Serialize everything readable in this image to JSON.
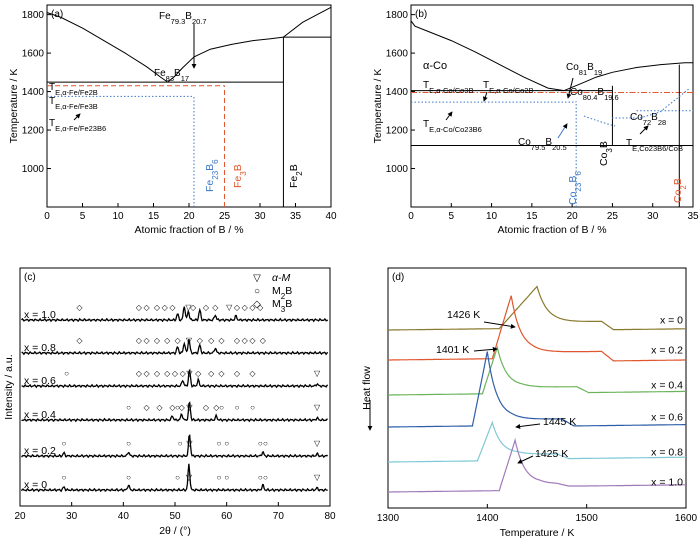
{
  "chart_data": [
    {
      "type": "line",
      "panel": "(a)",
      "xlabel": "Atomic fraction of B / %",
      "ylabel": "Temperature / K",
      "xlim": [
        0,
        40
      ],
      "ylim": [
        800,
        1850
      ],
      "xticks": [
        0,
        5,
        10,
        15,
        20,
        25,
        30,
        35,
        40
      ],
      "yticks": [
        1000,
        1200,
        1400,
        1600,
        1800
      ],
      "labels": {
        "e1": "Fe",
        "e1sub": "79.3",
        "e1b": "B",
        "e1bsub": "20.7",
        "e2": "Fe",
        "e2sub": "83",
        "e2b": "B",
        "e2bsub": "17",
        "t1": "T",
        "t1sub": "E,α-Fe/Fe2B",
        "t2": "T",
        "t2sub": "E,α-Fe/Fe3B",
        "t3": "T",
        "t3sub": "E,α-Fe/Fe23B6",
        "v1": "Fe23B6",
        "v2": "Fe3B",
        "v3": "Fe2B"
      },
      "liquidus_left": {
        "x": [
          0,
          2,
          5,
          8,
          11,
          14,
          16,
          17
        ],
        "y": [
          1811,
          1785,
          1730,
          1665,
          1600,
          1530,
          1475,
          1449
        ]
      },
      "liquidus_right": {
        "x": [
          17,
          18,
          19,
          20.7,
          23,
          26,
          29,
          31.5,
          33.3
        ],
        "y": [
          1449,
          1480,
          1520,
          1580,
          1620,
          1645,
          1665,
          1675,
          1683
        ]
      },
      "liquidus_fe2b": {
        "x": [
          33.3,
          36,
          40
        ],
        "y": [
          1683,
          1760,
          1838
        ]
      },
      "hlines": [
        {
          "y": 1449,
          "x": [
            0,
            33.3
          ],
          "style": "solid",
          "color": "#000"
        },
        {
          "y": 1683,
          "x": [
            33.3,
            40
          ],
          "style": "solid",
          "color": "#000"
        },
        {
          "y": 1430,
          "x": [
            0,
            25
          ],
          "style": "dash",
          "color": "#e0562e"
        },
        {
          "y": 1375,
          "x": [
            0,
            20.7
          ],
          "style": "dot",
          "color": "#3c78c8"
        }
      ],
      "vlines": [
        {
          "x": 20.7,
          "y": [
            800,
            1375
          ],
          "style": "dot",
          "color": "#3c78c8"
        },
        {
          "x": 25,
          "y": [
            800,
            1430
          ],
          "style": "dash",
          "color": "#e0562e"
        },
        {
          "x": 33.3,
          "y": [
            800,
            1683
          ],
          "style": "solid",
          "color": "#000"
        }
      ]
    },
    {
      "type": "line",
      "panel": "(b)",
      "xlabel": "Atomic fraction of B / %",
      "ylabel": "Temperature / K",
      "xlim": [
        0,
        35
      ],
      "ylim": [
        800,
        1850
      ],
      "xticks": [
        0,
        5,
        10,
        15,
        20,
        25,
        30,
        35
      ],
      "yticks": [
        1000,
        1200,
        1400,
        1600,
        1800
      ],
      "labels": {
        "phase": "α-Co",
        "e1": "Co",
        "e1sub": "81",
        "e1b": "B",
        "e1bsub": "19",
        "e2": "Co",
        "e2sub": "80.4",
        "e2b": "B",
        "e2bsub": "19.6",
        "e3": "Co",
        "e3sub": "79.5",
        "e3b": "B",
        "e3bsub": "20.5",
        "e4": "Co",
        "e4sub": "72",
        "e4b": "B",
        "e4bsub": "28",
        "t1": "T",
        "t1sub": "E,α-Co/Co3B",
        "t2": "T",
        "t2sub": "E,α-Co/Co2B",
        "t3": "T",
        "t3sub": "E,α-Co/Co23B6",
        "t4": "T",
        "t4sub": "E,Co23B6/CoB",
        "v1": "Co23B6",
        "v2": "Co3B",
        "v3": "Co2B"
      },
      "liquidus_left": {
        "x": [
          0,
          0.5,
          2,
          5,
          8,
          11,
          14,
          17,
          19
        ],
        "y": [
          1768,
          1740,
          1715,
          1665,
          1605,
          1540,
          1475,
          1418,
          1405
        ]
      },
      "liquidus_right": {
        "x": [
          19,
          21,
          23,
          25,
          28,
          31,
          34,
          35
        ],
        "y": [
          1405,
          1440,
          1475,
          1500,
          1525,
          1540,
          1550,
          1550
        ]
      },
      "hlines": [
        {
          "y": 1405,
          "x": [
            0,
            25
          ],
          "style": "solid",
          "color": "#000"
        },
        {
          "y": 1395,
          "x": [
            0,
            35
          ],
          "style": "dashdot",
          "color": "#e0562e"
        },
        {
          "y": 1345,
          "x": [
            0,
            20.5
          ],
          "style": "dot",
          "color": "#3c78c8"
        },
        {
          "y": 1300,
          "x": [
            28,
            35
          ],
          "style": "dot",
          "color": "#3c78c8"
        },
        {
          "y": 1120,
          "x": [
            0,
            35
          ],
          "style": "solid",
          "color": "#000"
        }
      ],
      "vlines": [
        {
          "x": 20.5,
          "y": [
            800,
            1350
          ],
          "style": "dot",
          "color": "#3c78c8"
        },
        {
          "x": 25,
          "y": [
            1120,
            1430
          ],
          "style": "solid",
          "color": "#000"
        },
        {
          "x": 33.3,
          "y": [
            800,
            1540
          ],
          "style": "solid",
          "color": "#000"
        }
      ]
    },
    {
      "type": "line",
      "panel": "(c)",
      "xlabel": "2θ / (°)",
      "ylabel": "Intensity / a.u.",
      "xlim": [
        20,
        80
      ],
      "xticks": [
        20,
        30,
        40,
        50,
        60,
        70,
        80
      ],
      "legend": [
        {
          "symbol": "▽",
          "label": "α-M"
        },
        {
          "symbol": "○",
          "label": "M2B"
        },
        {
          "symbol": "◇",
          "label": "M3B"
        }
      ],
      "series": [
        {
          "name": "x = 1.0",
          "peaks": [
            {
              "x": 50.5,
              "h": 6
            },
            {
              "x": 51.8,
              "h": 14
            },
            {
              "x": 52.6,
              "h": 9
            },
            {
              "x": 54.8,
              "h": 10
            },
            {
              "x": 57.8,
              "h": 5
            },
            {
              "x": 61.8,
              "h": 4
            }
          ],
          "markers": [
            {
              "s": "◇",
              "x": [
                31.5,
                43,
                44.5,
                46.5,
                48,
                49.5,
                53.5,
                56,
                57.8,
                62,
                63.5,
                65,
                66.5
              ]
            },
            {
              "s": "▽",
              "x": [
                52.6,
                60.5
              ]
            }
          ]
        },
        {
          "name": "x = 0.8",
          "peaks": [
            {
              "x": 50.5,
              "h": 6
            },
            {
              "x": 51.8,
              "h": 10
            },
            {
              "x": 52.7,
              "h": 14
            },
            {
              "x": 54.8,
              "h": 8
            },
            {
              "x": 57.8,
              "h": 5
            }
          ],
          "markers": [
            {
              "s": "◇",
              "x": [
                31.5,
                43,
                44.5,
                46.5,
                48.5,
                50.5,
                54.8,
                57,
                59,
                62,
                63.5,
                65,
                67
              ]
            },
            {
              "s": "▽",
              "x": [
                52.7
              ]
            }
          ]
        },
        {
          "name": "x = 0.6",
          "peaks": [
            {
              "x": 51.5,
              "h": 6
            },
            {
              "x": 52.8,
              "h": 16
            },
            {
              "x": 54.5,
              "h": 6
            },
            {
              "x": 77.5,
              "h": 2
            }
          ],
          "markers": [
            {
              "s": "◇",
              "x": [
                43,
                44.5,
                46.5,
                48.5,
                50,
                51.5,
                54.5,
                57,
                59,
                62,
                65
              ]
            },
            {
              "s": "▽",
              "x": [
                52.8,
                77.5
              ]
            },
            {
              "s": "○",
              "x": [
                29
              ]
            }
          ]
        },
        {
          "name": "x = 0.4",
          "peaks": [
            {
              "x": 49.5,
              "h": 4
            },
            {
              "x": 51.3,
              "h": 6
            },
            {
              "x": 52.8,
              "h": 18
            },
            {
              "x": 58,
              "h": 4
            },
            {
              "x": 77.5,
              "h": 2
            }
          ],
          "markers": [
            {
              "s": "◇",
              "x": [
                44.5,
                47,
                49.5,
                51.3,
                56,
                58
              ]
            },
            {
              "s": "○",
              "x": [
                41,
                50.5,
                59,
                62,
                65
              ]
            },
            {
              "s": "▽",
              "x": [
                52.8,
                77.5
              ]
            }
          ]
        },
        {
          "name": "x = 0.2",
          "peaks": [
            {
              "x": 28.5,
              "h": 3
            },
            {
              "x": 41,
              "h": 4
            },
            {
              "x": 52.8,
              "h": 22
            },
            {
              "x": 67,
              "h": 4
            },
            {
              "x": 77.5,
              "h": 2
            }
          ],
          "markers": [
            {
              "s": "○",
              "x": [
                28.5,
                41,
                51,
                58.5,
                60,
                66.5,
                67.5
              ]
            },
            {
              "s": "▽",
              "x": [
                52.8,
                77.5
              ]
            }
          ]
        },
        {
          "name": "x = 0",
          "peaks": [
            {
              "x": 28.5,
              "h": 3
            },
            {
              "x": 41,
              "h": 5
            },
            {
              "x": 52.7,
              "h": 26
            },
            {
              "x": 67,
              "h": 5
            },
            {
              "x": 77.5,
              "h": 2
            }
          ],
          "markers": [
            {
              "s": "○",
              "x": [
                28.5,
                41,
                50.5,
                58.5,
                60,
                66.5,
                67.5
              ]
            },
            {
              "s": "▽",
              "x": [
                52.7,
                77.5
              ]
            }
          ]
        }
      ]
    },
    {
      "type": "line",
      "panel": "(d)",
      "xlabel": "Temperature / K",
      "ylabel": "Heat flow",
      "xlim": [
        1300,
        1600
      ],
      "xticks": [
        1300,
        1400,
        1500,
        1600
      ],
      "annotations": [
        "1426 K",
        "1401 K",
        "1445 K",
        "1425 K"
      ],
      "series": [
        {
          "name": "x = 0",
          "color": "#8a7a2e",
          "onset": 1412,
          "peak": 1450,
          "height": 9,
          "step": 1515,
          "drop": 0.7
        },
        {
          "name": "x = 0.2",
          "color": "#e0562e",
          "onset": 1405,
          "peak": 1424,
          "height": 15,
          "step": 1515,
          "drop": 0.8
        },
        {
          "name": "x = 0.4",
          "color": "#6cb35c",
          "onset": 1395,
          "peak": 1410,
          "height": 11,
          "step": 1490,
          "drop": 0.5
        },
        {
          "name": "x = 0.6",
          "color": "#2f5ea8",
          "onset": 1385,
          "peak": 1400,
          "height": 18,
          "step": 1475,
          "drop": 0.6
        },
        {
          "name": "x = 0.8",
          "color": "#7fc9d6",
          "onset": 1390,
          "peak": 1405,
          "height": 9,
          "step": 1470,
          "drop": 0.4
        },
        {
          "name": "x = 1.0",
          "color": "#a07ab8",
          "onset": 1412,
          "peak": 1428,
          "height": 12,
          "step": 1470,
          "drop": 0.2
        }
      ]
    }
  ]
}
